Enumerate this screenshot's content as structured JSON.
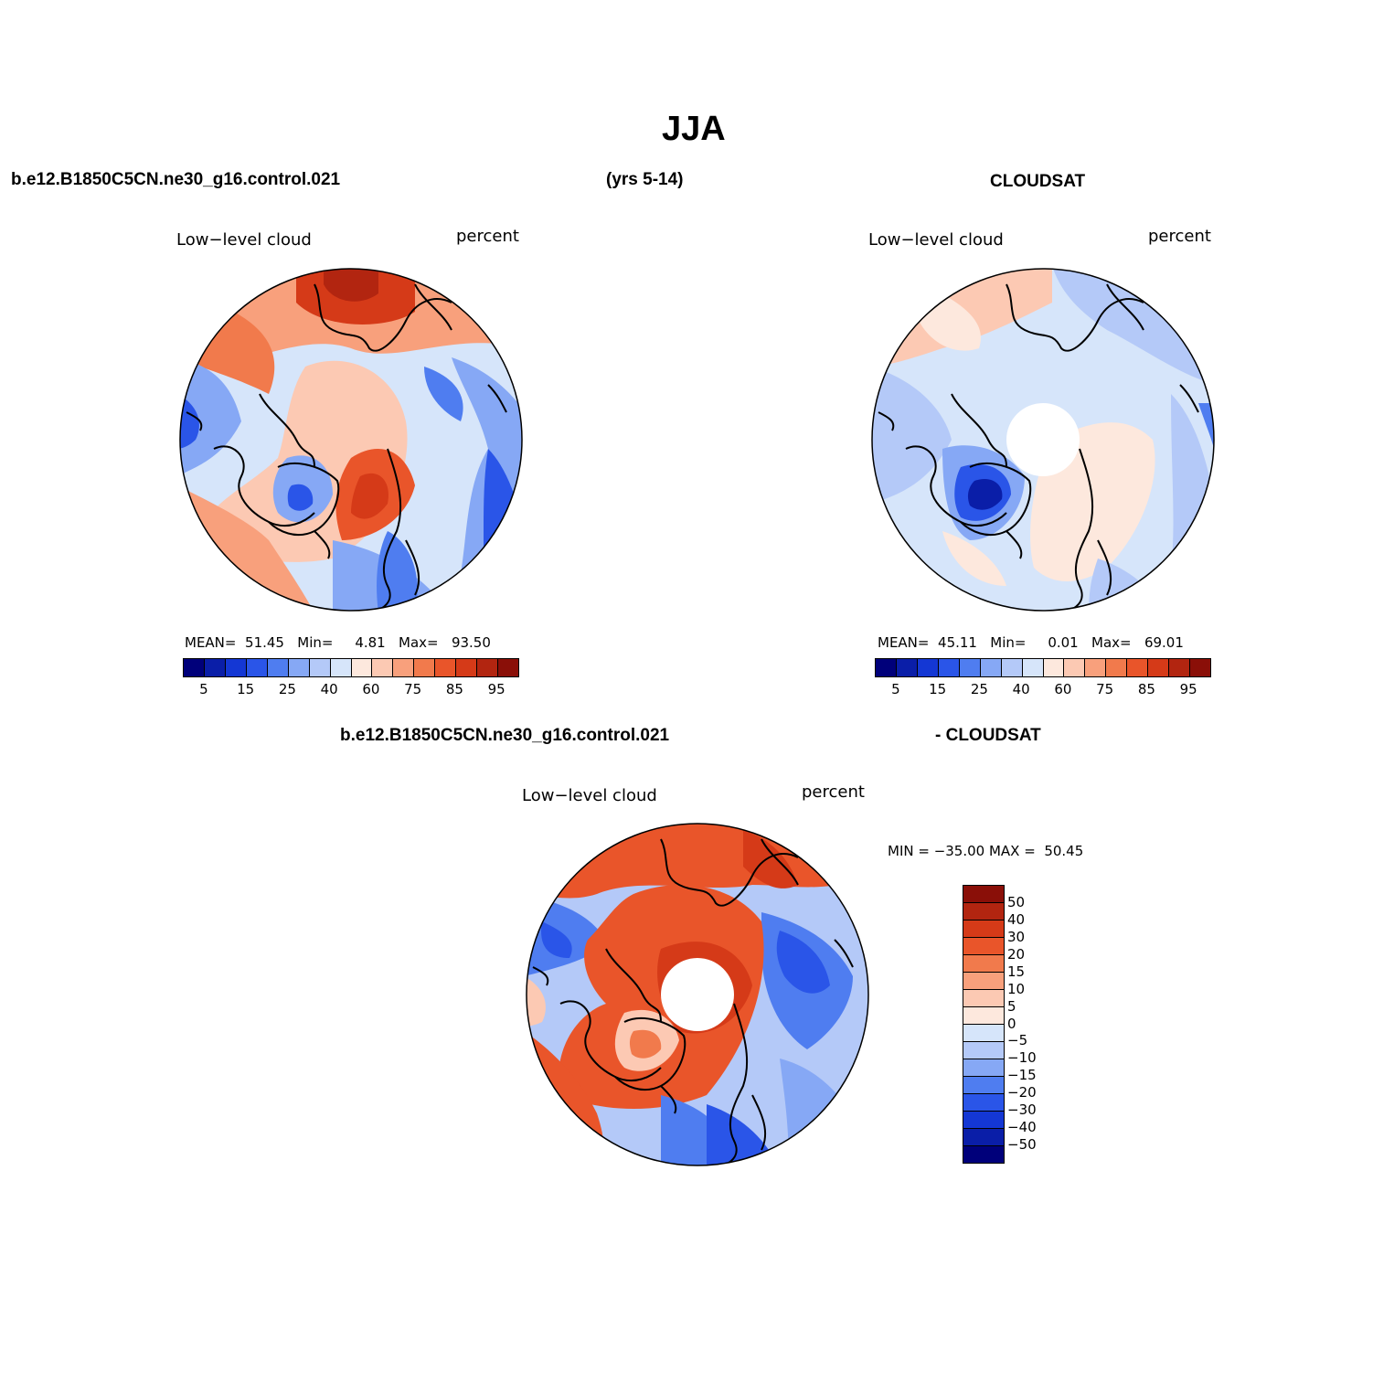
{
  "figure": {
    "title": "JJA",
    "case_name": "b.e12.B1850C5CN.ne30_g16.control.021",
    "years": "(yrs 5-14)",
    "obs_name": "CLOUDSAT",
    "diff_case_name": "b.e12.B1850C5CN.ne30_g16.control.021",
    "diff_obs_name": "- CLOUDSAT"
  },
  "panels": [
    {
      "variable": "Low−level cloud",
      "units": "percent",
      "stats": {
        "mean_label": "MEAN=",
        "mean": "51.45",
        "min_label": "Min=",
        "min": "4.81",
        "max_label": "Max=",
        "max": "93.50"
      }
    },
    {
      "variable": "Low−level cloud",
      "units": "percent",
      "stats": {
        "mean_label": "MEAN=",
        "mean": "45.11",
        "min_label": "Min=",
        "min": "0.01",
        "max_label": "Max=",
        "max": "69.01"
      }
    },
    {
      "variable": "Low−level cloud",
      "units": "percent",
      "stats": {
        "text": "MIN = −35.00 MAX =  50.45"
      }
    }
  ],
  "colorbar_main": {
    "colors": [
      "#00007a",
      "#0a1ea8",
      "#1437d4",
      "#2a55e8",
      "#4f7df0",
      "#86a8f5",
      "#b4c9f8",
      "#d6e5fa",
      "#fde8dd",
      "#fcc9b3",
      "#f8a07c",
      "#f17a4c",
      "#e9552a",
      "#d53a18",
      "#b22510",
      "#8a0f08"
    ],
    "tick_labels": [
      "5",
      "15",
      "25",
      "40",
      "60",
      "75",
      "85",
      "95"
    ]
  },
  "colorbar_diff": {
    "colors_top_to_bottom": [
      "#8a0f08",
      "#b22510",
      "#d53a18",
      "#e9552a",
      "#f17a4c",
      "#f8a07c",
      "#fcc9b3",
      "#fde8dd",
      "#d6e5fa",
      "#b4c9f8",
      "#86a8f5",
      "#4f7df0",
      "#2a55e8",
      "#1437d4",
      "#0a1ea8",
      "#00007a"
    ],
    "tick_labels": [
      "50",
      "40",
      "30",
      "20",
      "15",
      "10",
      "5",
      "0",
      "−5",
      "−10",
      "−15",
      "−20",
      "−30",
      "−40",
      "−50"
    ]
  }
}
